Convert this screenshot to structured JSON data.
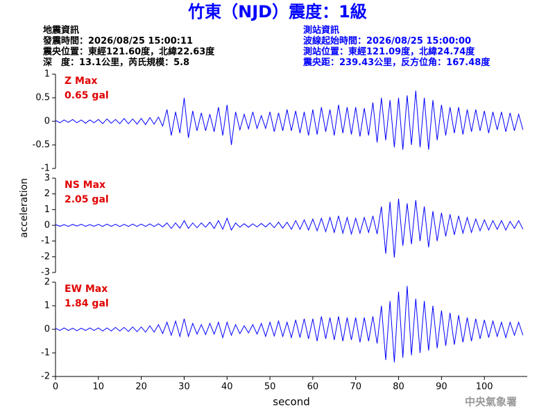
{
  "header": {
    "title": "竹東（NJD）震度：1級",
    "left": [
      "地震資訊",
      "發震時間：2026/08/25 15:00:11",
      "震央位置：東經121.60度，北緯22.63度",
      "深　度：13.1公里，芮氏規模：5.8"
    ],
    "right": [
      "測站資訊",
      "波線起始時間：2026/08/25 15:00:00",
      "測站位置：東經121.09度，北緯24.74度",
      "震央距：239.43公里，反方位角：167.48度"
    ]
  },
  "ylabel": "acceleration",
  "footer": "中央氣象署",
  "chart_data": [
    {
      "type": "line",
      "title": "Z Max",
      "annotation": "0.65 gal",
      "color": "#0000ff",
      "xlim": [
        0,
        110
      ],
      "ylim": [
        -1,
        1
      ],
      "yticks": [
        -1,
        -0.5,
        0,
        0.5,
        1
      ],
      "x": [
        0,
        1,
        2,
        3,
        4,
        5,
        6,
        7,
        8,
        9,
        10,
        11,
        12,
        13,
        14,
        15,
        16,
        17,
        18,
        19,
        20,
        21,
        22,
        23,
        24,
        25,
        26,
        27,
        28,
        29,
        30,
        31,
        32,
        33,
        34,
        35,
        36,
        37,
        38,
        39,
        40,
        41,
        42,
        43,
        44,
        45,
        46,
        47,
        48,
        49,
        50,
        51,
        52,
        53,
        54,
        55,
        56,
        57,
        58,
        59,
        60,
        61,
        62,
        63,
        64,
        65,
        66,
        67,
        68,
        69,
        70,
        71,
        72,
        73,
        74,
        75,
        76,
        77,
        78,
        79,
        80,
        81,
        82,
        83,
        84,
        85,
        86,
        87,
        88,
        89,
        90,
        91,
        92,
        93,
        94,
        95,
        96,
        97,
        98,
        99,
        100,
        101,
        102,
        103,
        104,
        105,
        106,
        107,
        108,
        109
      ],
      "values": [
        0.02,
        -0.03,
        0.03,
        -0.02,
        0.04,
        -0.03,
        0.03,
        -0.04,
        0.03,
        -0.03,
        0.04,
        -0.05,
        0.05,
        -0.04,
        0.04,
        -0.05,
        0.06,
        -0.05,
        0.05,
        -0.06,
        0.06,
        -0.07,
        0.08,
        -0.06,
        0.09,
        -0.1,
        0.25,
        -0.3,
        0.2,
        -0.25,
        0.5,
        -0.35,
        0.22,
        -0.2,
        0.18,
        -0.2,
        0.15,
        -0.22,
        0.3,
        -0.3,
        0.35,
        -0.5,
        0.2,
        -0.18,
        0.15,
        -0.16,
        0.2,
        -0.15,
        0.12,
        -0.15,
        0.2,
        -0.22,
        0.18,
        -0.2,
        0.25,
        -0.2,
        0.22,
        -0.25,
        0.2,
        -0.3,
        0.25,
        -0.28,
        0.3,
        -0.22,
        0.25,
        -0.3,
        0.35,
        -0.25,
        0.3,
        -0.28,
        0.3,
        -0.32,
        0.28,
        -0.3,
        0.4,
        -0.45,
        0.5,
        -0.4,
        0.45,
        -0.55,
        0.5,
        -0.6,
        0.55,
        -0.5,
        0.65,
        -0.55,
        0.5,
        -0.6,
        0.45,
        -0.4,
        0.35,
        -0.3,
        0.3,
        -0.25,
        0.3,
        -0.28,
        0.25,
        -0.22,
        0.25,
        -0.2,
        0.22,
        -0.25,
        0.2,
        -0.18,
        0.2,
        -0.22,
        0.18,
        -0.2,
        0.15,
        -0.18
      ]
    },
    {
      "type": "line",
      "title": "NS Max",
      "annotation": "2.05 gal",
      "color": "#0000ff",
      "xlim": [
        0,
        110
      ],
      "ylim": [
        -3,
        3
      ],
      "yticks": [
        -3,
        -2,
        -1,
        0,
        1,
        2,
        3
      ],
      "x": [
        0,
        1,
        2,
        3,
        4,
        5,
        6,
        7,
        8,
        9,
        10,
        11,
        12,
        13,
        14,
        15,
        16,
        17,
        18,
        19,
        20,
        21,
        22,
        23,
        24,
        25,
        26,
        27,
        28,
        29,
        30,
        31,
        32,
        33,
        34,
        35,
        36,
        37,
        38,
        39,
        40,
        41,
        42,
        43,
        44,
        45,
        46,
        47,
        48,
        49,
        50,
        51,
        52,
        53,
        54,
        55,
        56,
        57,
        58,
        59,
        60,
        61,
        62,
        63,
        64,
        65,
        66,
        67,
        68,
        69,
        70,
        71,
        72,
        73,
        74,
        75,
        76,
        77,
        78,
        79,
        80,
        81,
        82,
        83,
        84,
        85,
        86,
        87,
        88,
        89,
        90,
        91,
        92,
        93,
        94,
        95,
        96,
        97,
        98,
        99,
        100,
        101,
        102,
        103,
        104,
        105,
        106,
        107,
        108,
        109
      ],
      "values": [
        0.05,
        -0.06,
        0.05,
        -0.07,
        0.06,
        -0.05,
        0.07,
        -0.06,
        0.05,
        -0.06,
        0.06,
        -0.07,
        0.08,
        -0.06,
        0.07,
        -0.08,
        0.06,
        -0.07,
        0.08,
        -0.07,
        0.08,
        -0.07,
        0.09,
        -0.08,
        0.1,
        -0.1,
        0.15,
        -0.2,
        0.15,
        -0.18,
        0.3,
        -0.2,
        0.15,
        -0.15,
        0.15,
        -0.12,
        0.2,
        -0.2,
        0.3,
        -0.25,
        0.45,
        -0.3,
        0.15,
        -0.12,
        0.1,
        -0.12,
        0.1,
        -0.1,
        0.12,
        -0.1,
        0.15,
        -0.15,
        0.2,
        -0.18,
        0.2,
        -0.25,
        0.3,
        -0.25,
        0.35,
        -0.3,
        0.4,
        -0.35,
        0.45,
        -0.4,
        0.5,
        -0.45,
        0.6,
        -0.5,
        0.5,
        -0.55,
        0.45,
        -0.5,
        0.5,
        -0.45,
        0.6,
        -0.55,
        1.2,
        -1.8,
        1.5,
        -2.05,
        1.7,
        -1.3,
        1.4,
        -1.2,
        1.6,
        -1.0,
        1.2,
        -1.4,
        0.9,
        -1.0,
        0.8,
        -0.7,
        0.7,
        -0.6,
        0.6,
        -0.5,
        0.5,
        -0.45,
        0.4,
        -0.35,
        0.35,
        -0.3,
        0.3,
        -0.25,
        0.3,
        -0.3,
        0.25,
        -0.2,
        0.3,
        -0.25
      ]
    },
    {
      "type": "line",
      "title": "EW Max",
      "annotation": "1.84 gal",
      "color": "#0000ff",
      "xlabel": "second",
      "xlim": [
        0,
        110
      ],
      "xticks": [
        0,
        10,
        20,
        30,
        40,
        50,
        60,
        70,
        80,
        90,
        100
      ],
      "ylim": [
        -2,
        2
      ],
      "yticks": [
        -2,
        -1,
        0,
        1,
        2
      ],
      "x": [
        0,
        1,
        2,
        3,
        4,
        5,
        6,
        7,
        8,
        9,
        10,
        11,
        12,
        13,
        14,
        15,
        16,
        17,
        18,
        19,
        20,
        21,
        22,
        23,
        24,
        25,
        26,
        27,
        28,
        29,
        30,
        31,
        32,
        33,
        34,
        35,
        36,
        37,
        38,
        39,
        40,
        41,
        42,
        43,
        44,
        45,
        46,
        47,
        48,
        49,
        50,
        51,
        52,
        53,
        54,
        55,
        56,
        57,
        58,
        59,
        60,
        61,
        62,
        63,
        64,
        65,
        66,
        67,
        68,
        69,
        70,
        71,
        72,
        73,
        74,
        75,
        76,
        77,
        78,
        79,
        80,
        81,
        82,
        83,
        84,
        85,
        86,
        87,
        88,
        89,
        90,
        91,
        92,
        93,
        94,
        95,
        96,
        97,
        98,
        99,
        100,
        101,
        102,
        103,
        104,
        105,
        106,
        107,
        108,
        109
      ],
      "values": [
        0.05,
        -0.05,
        0.06,
        -0.05,
        0.05,
        -0.06,
        0.05,
        -0.05,
        0.06,
        -0.05,
        0.06,
        -0.07,
        0.06,
        -0.07,
        0.08,
        -0.07,
        0.08,
        -0.09,
        0.1,
        -0.1,
        0.1,
        -0.12,
        0.15,
        -0.12,
        0.2,
        -0.18,
        0.3,
        -0.25,
        0.35,
        -0.3,
        0.45,
        -0.3,
        0.25,
        -0.2,
        0.2,
        -0.22,
        0.25,
        -0.2,
        0.3,
        -0.35,
        0.3,
        -0.25,
        0.2,
        -0.18,
        0.15,
        -0.15,
        0.2,
        -0.2,
        0.25,
        -0.3,
        0.3,
        -0.28,
        0.35,
        -0.3,
        0.3,
        -0.35,
        0.4,
        -0.35,
        0.45,
        -0.4,
        0.45,
        -0.5,
        0.55,
        -0.4,
        0.5,
        -0.45,
        0.55,
        -0.5,
        0.5,
        -0.45,
        0.5,
        -0.55,
        0.5,
        -0.5,
        0.55,
        -0.6,
        1.0,
        -1.3,
        1.2,
        -1.4,
        1.6,
        -1.2,
        1.84,
        -1.1,
        1.3,
        -1.0,
        1.2,
        -0.9,
        1.0,
        -0.8,
        0.8,
        -0.7,
        0.7,
        -0.65,
        0.6,
        -0.55,
        0.5,
        -0.5,
        0.45,
        -0.4,
        0.4,
        -0.35,
        0.35,
        -0.3,
        0.3,
        -0.35,
        0.3,
        -0.25,
        0.3,
        -0.25
      ]
    }
  ]
}
